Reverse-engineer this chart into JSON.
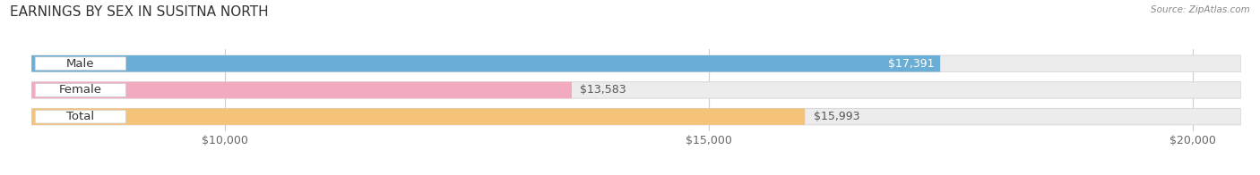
{
  "title": "EARNINGS BY SEX IN SUSITNA NORTH",
  "source": "Source: ZipAtlas.com",
  "categories": [
    "Male",
    "Female",
    "Total"
  ],
  "values": [
    17391,
    13583,
    15993
  ],
  "bar_colors": [
    "#6aaed6",
    "#f2aabf",
    "#f5c27a"
  ],
  "xmin": 8000,
  "xmax": 20500,
  "xticks": [
    10000,
    15000,
    20000
  ],
  "xtick_labels": [
    "$10,000",
    "$15,000",
    "$20,000"
  ],
  "title_fontsize": 11,
  "tick_fontsize": 9,
  "value_fontsize": 9,
  "label_fontsize": 9.5,
  "background_color": "#ffffff",
  "bar_height": 0.62,
  "bar_bg_color": "#ececec",
  "bar_bg_edge": "#d8d8d8"
}
